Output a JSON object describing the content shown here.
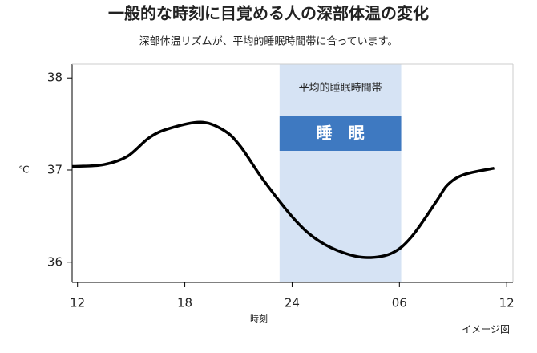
{
  "chart_data": {
    "type": "line",
    "title": "一般的な時刻に目覚める人の深部体温の変化",
    "subtitle": "深部体温リズムが、平均的睡眠時間帯に合っています。",
    "y_label": "℃",
    "x_label": "時刻",
    "note": "イメージ図",
    "band": {
      "range": [
        23.3,
        30.1
      ],
      "label": "平均的睡眠時間帯",
      "box_label": "睡　眠",
      "color": "#d6e3f4",
      "box_color": "#3e79c1"
    },
    "series": [
      {
        "color": "#000000",
        "x": [
          11.7,
          12,
          13.5,
          14.8,
          16,
          17.1,
          18.9,
          20.2,
          21.1,
          22.4,
          24.2,
          25.5,
          26.9,
          28.2,
          29.6,
          30.7,
          32.1,
          32.7,
          33.6,
          35.3
        ],
        "values": [
          37.04,
          37.04,
          37.06,
          37.15,
          37.35,
          37.45,
          37.52,
          37.43,
          37.26,
          36.89,
          36.45,
          36.23,
          36.1,
          36.05,
          36.1,
          36.28,
          36.67,
          36.84,
          36.95,
          37.02
        ]
      }
    ],
    "xlim": [
      11.7,
      36.35
    ],
    "xticks": [
      12,
      18,
      24,
      {
        "value": 30,
        "label": "06"
      },
      {
        "value": 36,
        "label": "12"
      }
    ],
    "ylim": [
      35.78,
      38.15
    ],
    "yticks": [
      36,
      37,
      38
    ]
  }
}
